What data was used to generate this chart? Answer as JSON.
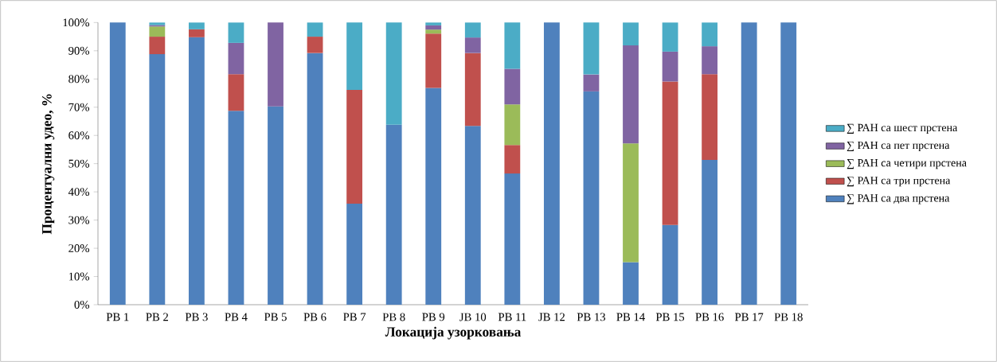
{
  "chart_data": {
    "type": "bar",
    "stacked": true,
    "xlabel": "Локација узорковања",
    "ylabel": "Процентуални удео, %",
    "categories": [
      "РВ 1",
      "РВ 2",
      "РВ 3",
      "РВ 4",
      "РВ 5",
      "РВ 6",
      "РВ 7",
      "РВ 8",
      "РВ 9",
      "ЈВ 10",
      "РВ 11",
      "ЈВ 12",
      "РВ 13",
      "РВ 14",
      "РВ 15",
      "РВ 16",
      "РВ 17",
      "РВ 18"
    ],
    "series": [
      {
        "name": "∑ РАН са два прстена",
        "color": "#4f81bd",
        "values": [
          100,
          88.8,
          94.8,
          68.7,
          70.3,
          89.2,
          35.8,
          63.8,
          76.8,
          63.4,
          46.5,
          100,
          75.6,
          15.1,
          28.3,
          51.3,
          100,
          100
        ]
      },
      {
        "name": "∑ РАН са три прстена",
        "color": "#c0504d",
        "values": [
          null,
          6.2,
          2.8,
          13.0,
          null,
          5.8,
          40.3,
          null,
          19.3,
          25.8,
          10.1,
          null,
          null,
          null,
          50.8,
          30.4,
          null,
          null
        ]
      },
      {
        "name": "∑ РАН са четири прстена",
        "color": "#9bbb59",
        "values": [
          null,
          3.6,
          null,
          null,
          null,
          null,
          null,
          null,
          1.4,
          null,
          14.4,
          null,
          null,
          42.1,
          null,
          null,
          null,
          null
        ]
      },
      {
        "name": "∑ РАН са пет прстена",
        "color": "#8064a2",
        "values": [
          null,
          0.5,
          null,
          11.1,
          29.7,
          null,
          null,
          null,
          1.5,
          5.5,
          12.6,
          null,
          6.0,
          34.7,
          10.6,
          9.9,
          null,
          null
        ]
      },
      {
        "name": "∑ РАН са шест прстена",
        "color": "#4bacc6",
        "values": [
          null,
          0.9,
          2.4,
          7.2,
          null,
          5.0,
          23.9,
          36.2,
          1.0,
          5.3,
          16.4,
          null,
          18.4,
          8.1,
          10.3,
          8.4,
          null,
          null
        ]
      }
    ],
    "ylim": [
      0,
      100
    ],
    "yticks": [
      {
        "value": 0,
        "label": "0%"
      },
      {
        "value": 10,
        "label": "10%"
      },
      {
        "value": 20,
        "label": "20%"
      },
      {
        "value": 30,
        "label": "30%"
      },
      {
        "value": 40,
        "label": "40%"
      },
      {
        "value": 50,
        "label": "50%"
      },
      {
        "value": 60,
        "label": "60%"
      },
      {
        "value": 70,
        "label": "70%"
      },
      {
        "value": 80,
        "label": "80%"
      },
      {
        "value": 90,
        "label": "90%"
      },
      {
        "value": 100,
        "label": "100%"
      }
    ],
    "grid": false,
    "legend": "right"
  }
}
